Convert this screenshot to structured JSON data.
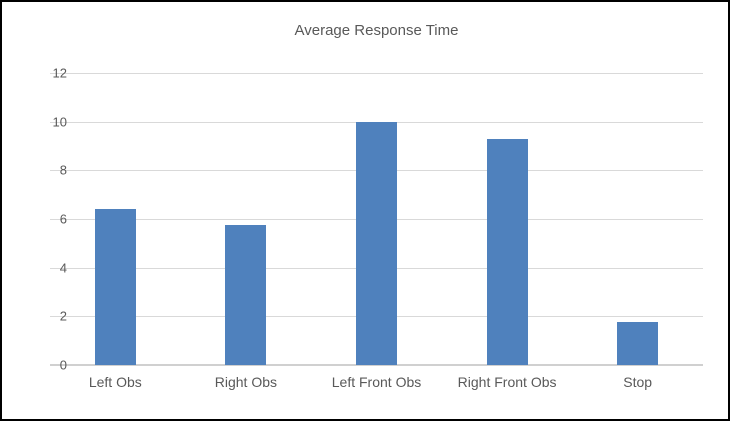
{
  "chart_data": {
    "type": "bar",
    "title": "Average Response Time",
    "categories": [
      "Left Obs",
      "Right Obs",
      "Left Front Obs",
      "Right Front Obs",
      "Stop"
    ],
    "values": [
      6.4,
      5.75,
      10,
      9.3,
      1.75
    ],
    "xlabel": "",
    "ylabel": "",
    "ylim": [
      0,
      12
    ],
    "yticks": [
      0,
      2,
      4,
      6,
      8,
      10,
      12
    ],
    "grid": "horizontal",
    "legend": "none",
    "colors": {
      "bar": "#4f81bd",
      "gridline": "#d9d9d9",
      "axis_line": "#d0d0d0",
      "text": "#595959",
      "frame_border": "#000000"
    }
  }
}
